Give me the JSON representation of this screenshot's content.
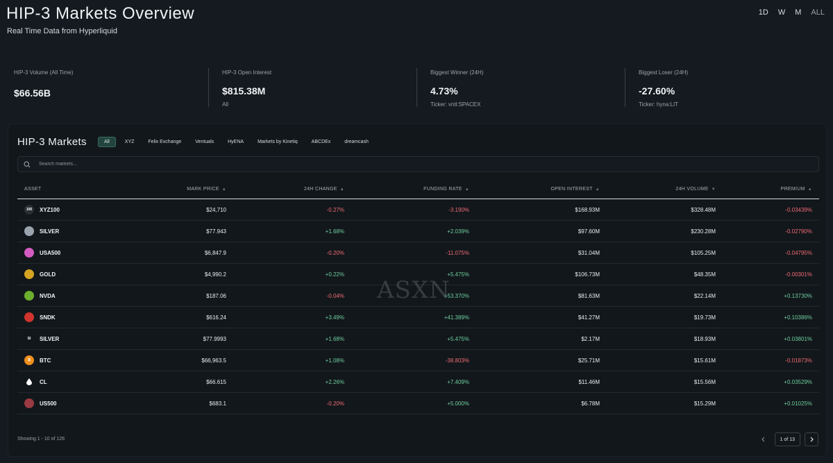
{
  "header": {
    "title": "HIP-3 Markets Overview",
    "subtitle": "Real Time Data from Hyperliquid",
    "timeframes": [
      "1D",
      "W",
      "M",
      "ALL"
    ]
  },
  "stats": [
    {
      "label": "HIP-3 Volume (All Time)",
      "value": "$66.56B",
      "sub": ""
    },
    {
      "label": "HIP-3 Open Interest",
      "value": "$815.38M",
      "sub": "All"
    },
    {
      "label": "Biggest Winner (24H)",
      "value": "4.73%",
      "sub": "Ticker: vntl:SPACEX"
    },
    {
      "label": "Biggest Loser (24H)",
      "value": "-27.60%",
      "sub": "Ticker: hyna:LIT"
    }
  ],
  "markets": {
    "title": "HIP-3 Markets",
    "tabs": [
      "All",
      "XYZ",
      "Felix Exchange",
      "Ventuals",
      "HyENA",
      "Markets by Kinetiq",
      "ABCDEx",
      "dreamcash"
    ],
    "active_tab": "All",
    "search_placeholder": "Search markets...",
    "columns": [
      "ASSET",
      "MARK PRICE",
      "24H CHANGE",
      "FUNDING RATE",
      "OPEN INTEREST",
      "24H VOLUME",
      "PREMIUM"
    ],
    "rows": [
      {
        "asset": "XYZ100",
        "icon_text": "100",
        "icon_color": "#2a2f36",
        "mark": "$24,710",
        "change": "-0.27%",
        "change_dir": "neg",
        "funding": "-3.190%",
        "funding_dir": "neg",
        "oi": "$168.93M",
        "volume": "$328.48M",
        "premium": "-0.03439%",
        "premium_dir": "neg"
      },
      {
        "asset": "SILVER",
        "icon_text": "",
        "icon_color": "#9aa4ae",
        "mark": "$77.943",
        "change": "+1.68%",
        "change_dir": "pos",
        "funding": "+2.039%",
        "funding_dir": "pos",
        "oi": "$97.60M",
        "volume": "$230.28M",
        "premium": "-0.02790%",
        "premium_dir": "neg"
      },
      {
        "asset": "USA500",
        "icon_text": "",
        "icon_color": "#d35bc1",
        "mark": "$6,847.9",
        "change": "-0.20%",
        "change_dir": "neg",
        "funding": "-11.075%",
        "funding_dir": "neg",
        "oi": "$31.04M",
        "volume": "$105.25M",
        "premium": "-0.04795%",
        "premium_dir": "neg"
      },
      {
        "asset": "GOLD",
        "icon_text": "",
        "icon_color": "#d4a422",
        "mark": "$4,990.2",
        "change": "+0.22%",
        "change_dir": "pos",
        "funding": "+5.475%",
        "funding_dir": "pos",
        "oi": "$106.73M",
        "volume": "$48.35M",
        "premium": "-0.00301%",
        "premium_dir": "neg"
      },
      {
        "asset": "NVDA",
        "icon_text": "",
        "icon_color": "#6cae2e",
        "mark": "$187.06",
        "change": "-0.04%",
        "change_dir": "neg",
        "funding": "+53.370%",
        "funding_dir": "pos",
        "oi": "$81.63M",
        "volume": "$22.14M",
        "premium": "+0.13730%",
        "premium_dir": "pos"
      },
      {
        "asset": "SNDK",
        "icon_text": "",
        "icon_color": "#d0342c",
        "mark": "$616.24",
        "change": "+3.49%",
        "change_dir": "pos",
        "funding": "+41.389%",
        "funding_dir": "pos",
        "oi": "$41.27M",
        "volume": "$19.73M",
        "premium": "+0.10386%",
        "premium_dir": "pos"
      },
      {
        "asset": "SILVER",
        "icon_text": "SI",
        "icon_color": "#12171b",
        "mark": "$77.9993",
        "change": "+1.68%",
        "change_dir": "pos",
        "funding": "+5.475%",
        "funding_dir": "pos",
        "oi": "$2.17M",
        "volume": "$18.93M",
        "premium": "+0.03801%",
        "premium_dir": "pos"
      },
      {
        "asset": "BTC",
        "icon_text": "₿",
        "icon_color": "#ef8e1c",
        "mark": "$66,963.5",
        "change": "+1.08%",
        "change_dir": "pos",
        "funding": "-38.803%",
        "funding_dir": "neg",
        "oi": "$25.71M",
        "volume": "$15.61M",
        "premium": "-0.01873%",
        "premium_dir": "neg"
      },
      {
        "asset": "CL",
        "icon_text": "",
        "icon_color": "#12171b",
        "mark": "$66.615",
        "change": "+2.26%",
        "change_dir": "pos",
        "funding": "+7.409%",
        "funding_dir": "pos",
        "oi": "$11.46M",
        "volume": "$15.56M",
        "premium": "+0.03529%",
        "premium_dir": "pos"
      },
      {
        "asset": "US500",
        "icon_text": "",
        "icon_color": "#9b3a42",
        "mark": "$683.1",
        "change": "-0.20%",
        "change_dir": "neg",
        "funding": "+5.000%",
        "funding_dir": "pos",
        "oi": "$6.78M",
        "volume": "$15.29M",
        "premium": "+0.01025%",
        "premium_dir": "pos"
      }
    ],
    "showing_text": "Showing 1 - 10 of 126",
    "page_label": "1 of 13"
  },
  "watermark": "ASXN",
  "colors": {
    "positive": "#6fcf9f",
    "negative": "#ef6b74",
    "accent": "#23443e"
  }
}
